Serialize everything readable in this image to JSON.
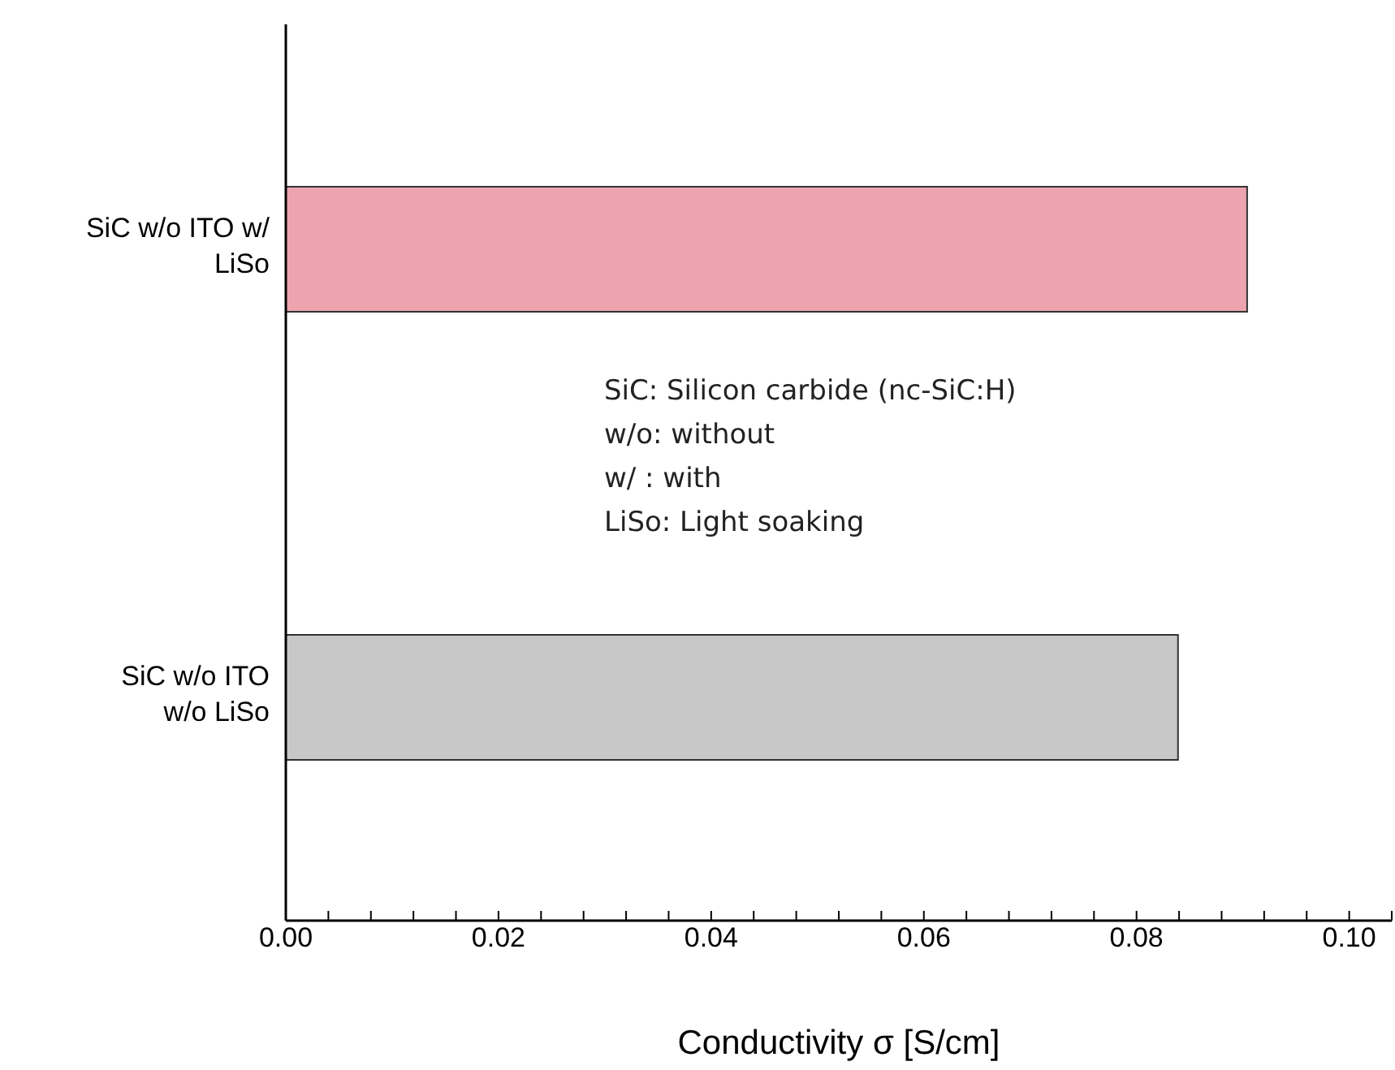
{
  "chart_data": {
    "type": "bar",
    "orientation": "horizontal",
    "xlabel": "Conductivity σ [S/cm]",
    "categories": [
      "SiC w/o ITO w/ LiSo",
      "SiC w/o ITO w/o LiSo"
    ],
    "values": [
      0.0904,
      0.0839
    ],
    "colors": [
      "#eea4ae",
      "#c8c8c8"
    ],
    "xlim": [
      0,
      0.104
    ],
    "xticks": [
      {
        "value": 0,
        "label": "0.00"
      },
      {
        "value": 0.004,
        "label": null
      },
      {
        "value": 0.008,
        "label": null
      },
      {
        "value": 0.012,
        "label": null
      },
      {
        "value": 0.016,
        "label": null
      },
      {
        "value": 0.02,
        "label": "0.02"
      },
      {
        "value": 0.024,
        "label": null
      },
      {
        "value": 0.028,
        "label": null
      },
      {
        "value": 0.032,
        "label": null
      },
      {
        "value": 0.036,
        "label": null
      },
      {
        "value": 0.04,
        "label": "0.04"
      },
      {
        "value": 0.044,
        "label": null
      },
      {
        "value": 0.048,
        "label": null
      },
      {
        "value": 0.052,
        "label": null
      },
      {
        "value": 0.056,
        "label": null
      },
      {
        "value": 0.06,
        "label": "0.06"
      },
      {
        "value": 0.064,
        "label": null
      },
      {
        "value": 0.068,
        "label": null
      },
      {
        "value": 0.072,
        "label": null
      },
      {
        "value": 0.076,
        "label": null
      },
      {
        "value": 0.08,
        "label": "0.08"
      },
      {
        "value": 0.084,
        "label": null
      },
      {
        "value": 0.088,
        "label": null
      },
      {
        "value": 0.092,
        "label": null
      },
      {
        "value": 0.096,
        "label": null
      },
      {
        "value": 0.1,
        "label": "0.10"
      },
      {
        "value": 0.104,
        "label": null
      }
    ],
    "annotations": [
      "SiC: Silicon carbide (nc-SiC:H)",
      "w/o: without",
      "w/ : with",
      "LiSo: Light soaking"
    ]
  }
}
